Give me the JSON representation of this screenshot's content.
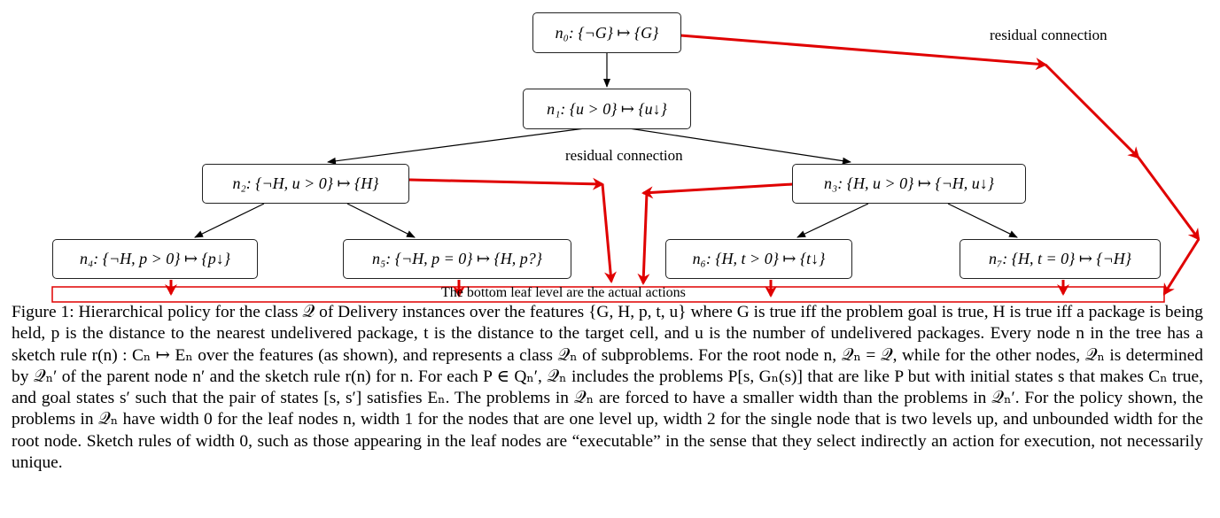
{
  "diagram": {
    "nodes": {
      "n0": "n₀: {¬G} ↦ {G}",
      "n1": "n₁: {u > 0} ↦ {u↓}",
      "n2": "n₂: {¬H, u > 0} ↦ {H}",
      "n3": "n₃: {H, u > 0} ↦ {¬H, u↓}",
      "n4": "n₄: {¬H, p > 0} ↦ {p↓}",
      "n5": "n₅: {¬H, p = 0} ↦ {H, p?}",
      "n6": "n₆: {H, t > 0} ↦ {t↓}",
      "n7": "n₇: {H, t = 0} ↦ {¬H}"
    },
    "annotations": {
      "residual_top": "residual connection",
      "residual_middle": "residual connection",
      "bottom_leaf": "The bottom leaf level are the actual actions"
    },
    "colors": {
      "annotation": "#e00000",
      "edge": "#000000"
    }
  },
  "caption": "Figure 1: Hierarchical policy for the class 𝒬 of Delivery instances over the features {G, H, p, t, u} where G is true iff the problem goal is true, H is true iff a package is being held, p is the distance to the nearest undelivered package, t is the distance to the target cell, and u is the number of undelivered packages. Every node n in the tree has a sketch rule r(n) : Cₙ ↦ Eₙ over the features (as shown), and represents a class 𝒬ₙ of subproblems. For the root node n, 𝒬ₙ = 𝒬, while for the other nodes, 𝒬ₙ is determined by 𝒬ₙ′ of the parent node n′ and the sketch rule r(n) for n. For each P ∈ Qₙ′, 𝒬ₙ includes the problems P[s, Gₙ(s)] that are like P but with initial states s that makes Cₙ true, and goal states s′ such that the pair of states [s, s′] satisfies Eₙ. The problems in 𝒬ₙ are forced to have a smaller width than the problems in 𝒬ₙ′. For the policy shown, the problems in 𝒬ₙ have width 0 for the leaf nodes n, width 1 for the nodes that are one level up, width 2 for the single node that is two levels up, and unbounded width for the root node. Sketch rules of width 0, such as those appearing in the leaf nodes are “executable” in the sense that they select indirectly an action for execution, not necessarily unique."
}
